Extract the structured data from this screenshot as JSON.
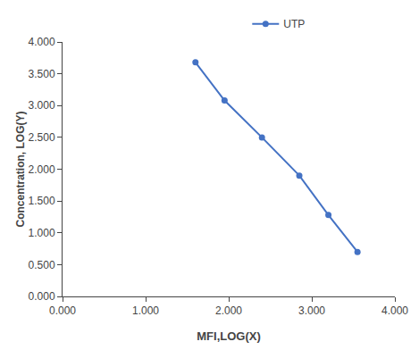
{
  "chart_data": {
    "type": "line",
    "x": [
      1.6,
      1.95,
      2.4,
      2.85,
      3.2,
      3.55
    ],
    "series": [
      {
        "name": "UTP",
        "color": "#4472C4",
        "values": [
          3.68,
          3.08,
          2.5,
          1.9,
          1.28,
          0.7
        ]
      }
    ],
    "xlabel": "MFI,LOG(X)",
    "ylabel": "Concentration, LOG(Y)",
    "xlim": [
      0.0,
      4.0
    ],
    "ylim": [
      0.0,
      4.0
    ],
    "xticks": [
      {
        "value": 0,
        "label": "0.000"
      },
      {
        "value": 1,
        "label": "1.000"
      },
      {
        "value": 2,
        "label": "2.000"
      },
      {
        "value": 3,
        "label": "3.000"
      },
      {
        "value": 4,
        "label": "4.000"
      }
    ],
    "yticks": [
      {
        "value": 0,
        "label": "0.000"
      },
      {
        "value": 0.5,
        "label": "0.500"
      },
      {
        "value": 1,
        "label": "1.000"
      },
      {
        "value": 1.5,
        "label": "1.500"
      },
      {
        "value": 2,
        "label": "2.000"
      },
      {
        "value": 2.5,
        "label": "2.500"
      },
      {
        "value": 3,
        "label": "3.000"
      },
      {
        "value": 3.5,
        "label": "3.500"
      },
      {
        "value": 4,
        "label": "4.000"
      }
    ],
    "marker": "circle",
    "grid": false,
    "legend": "top"
  }
}
